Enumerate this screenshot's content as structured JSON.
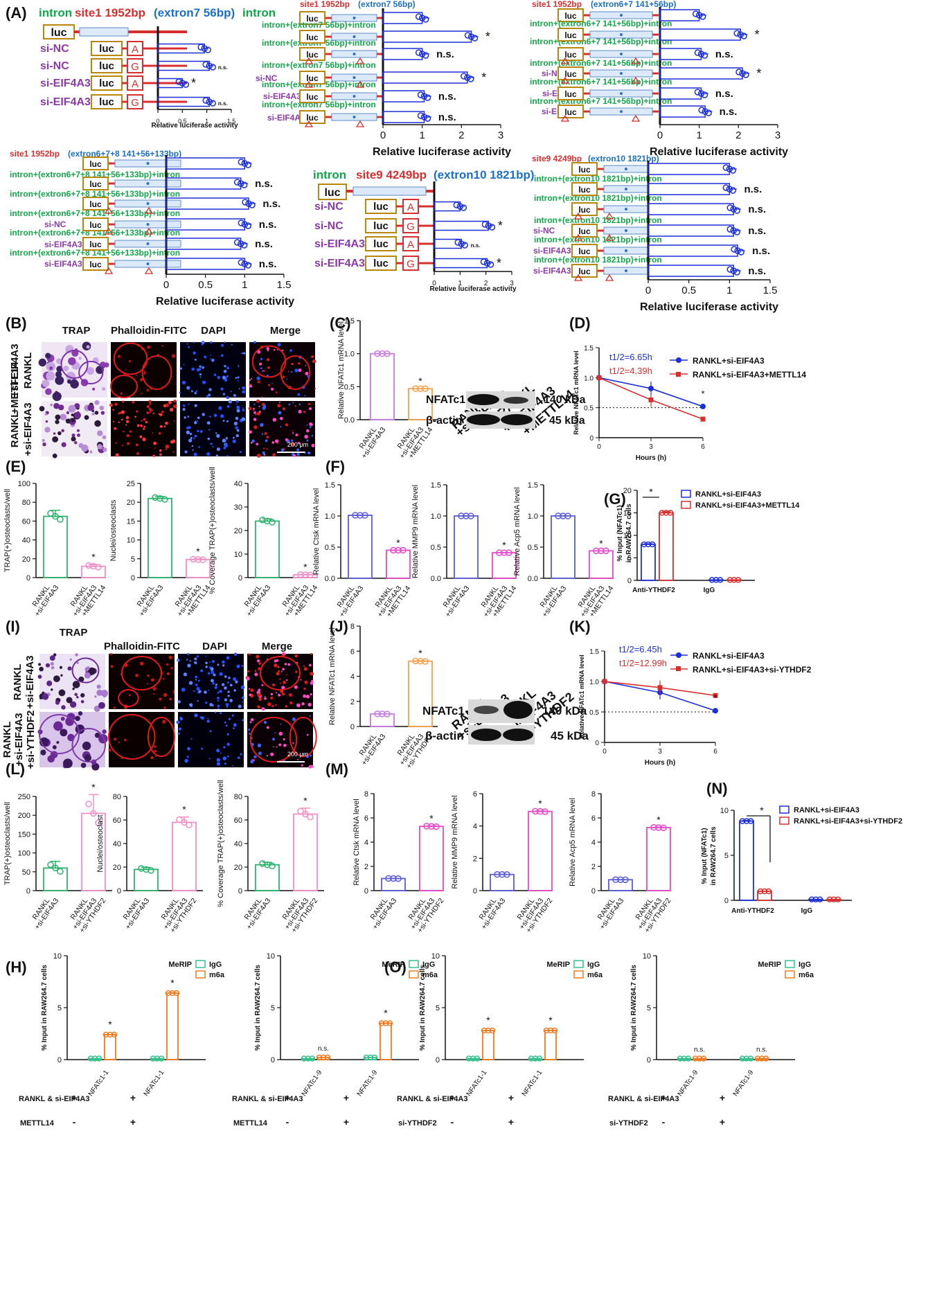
{
  "colors": {
    "red": "#d72f2f",
    "green": "#12a64a",
    "blue": "#1b6fc8",
    "purple": "#8b3aa8",
    "gold": "#b8860b",
    "navy": "#1c2fd8",
    "blk": "#111111",
    "ctrl_green": "#2db36e",
    "treat_pink": "#f08fc7",
    "ctrl_blue": "#5a5ad8",
    "treat_mag": "#e548c8",
    "orange": "#f4a04a",
    "lilac": "#c77be0",
    "igg_green": "#34c08a",
    "m6a_orange": "#f07a1e"
  },
  "panels": {
    "A": "(A)",
    "B": "(B)",
    "C": "(C)",
    "D": "(D)",
    "E": "(E)",
    "F": "(F)",
    "G": "(G)",
    "H": "(H)",
    "I": "(I)",
    "J": "(J)",
    "K": "(K)",
    "L": "(L)",
    "M": "(M)",
    "N": "(N)",
    "O": "(O)"
  },
  "luc": {
    "luc": "luc",
    "A": "A",
    "G": "G",
    "si_nc": "si-NC",
    "si_eif": "si-EIF4A3",
    "rla": "Relative luciferase activity",
    "ns": "n.s.",
    "star": "*",
    "p1": {
      "t1": "intron",
      "t2": "site1 1952bp",
      "t3": "(extron7 56bp)",
      "t4": "intron"
    },
    "p2": {
      "h1": "site1 1952bp",
      "h2": "(extron7 56bp)",
      "row": "intron+(extron7 56bp)+intron"
    },
    "p3": {
      "h1": "site1 1952bp",
      "h2": "(extron6+7 141+56bp)",
      "row": "intron+(extron6+7 141+56bp)+intron"
    },
    "p4": {
      "h1": "site1 1952bp",
      "h2": "(extron6+7+8 141+56+133bp)",
      "row": "intron+(extron6+7+8 141+56+133bp)+intron"
    },
    "p5": {
      "t1": "intron",
      "t2": "site9 4249bp",
      "t3": "(extron10 1821bp)"
    },
    "p6": {
      "h1": "site9 4249bp",
      "h2": "(extron10 1821bp)",
      "row": "intron+(extron10 1821bp)+intron"
    }
  },
  "micro": {
    "trap": "TRAP",
    "phal": "Phalloidin-FITC",
    "dapi": "DAPI",
    "merge": "Merge",
    "scale": "200 μm",
    "rankl": "RANKL",
    "si_eif": "+si-EIF4A3",
    "rankl_si": "RANKL +si-EIF4A3",
    "mettl": "+METTL14",
    "ythdf": "+si-YTHDF2"
  },
  "wb": {
    "nfat": "NFATc1",
    "actin": "β-actin",
    "kda140": "140 kDa",
    "kda45": "45 kDa",
    "c_l1": "RANKL",
    "c_l2": "+si-EIF4A3",
    "c_l3": "+METTL14",
    "c_l4": "+si-YTHDF2"
  },
  "axis": {
    "rankl": "RANKL",
    "si_eif": "+si-EIF4A3",
    "mettl": "+METTL14",
    "ythdf": "+si-YTHDF2",
    "nfat_mrna": "Relative NFATc1 mRNA level",
    "hours": "Hours (h)",
    "trap_e": "TRAP(+)osteoclasts/well",
    "nuclei_e": "Nuclei/osteoclasts",
    "cov_e": "% Coverage TRAP(+)osteoclasts/well",
    "trap_l": "TRAP(+)osteoclasts/well",
    "nuclei_l": "Nuclei/osteoclast",
    "cov_l": "% Coverage TRAP(+)osteoclasts/well",
    "ctsk": "Relative Ctsk mRNA level",
    "mmp9": "Relative MMP9 mRNA level",
    "acp5": "Relative Acp5 mRNA level",
    "input_nfat": "% Input (NFATc1)",
    "raw": "in RAW264.7 cells",
    "input_raw": "% Input in RAW264.7 cells",
    "anti": "Anti-YTHDF2",
    "igg": "IgG",
    "merip": "MeRIP",
    "m6a": "m6a",
    "nf1": "NFATc1-1",
    "nf9": "NFATc1-9",
    "rankl_si": "RANKL & si-EIF4A3",
    "mettl14": "METTL14",
    "siythdf2": "si-YTHDF2",
    "plus": "+",
    "minus": "-"
  },
  "legend": {
    "d1": "RANKL+si-EIF4A3",
    "d2": "RANKL+si-EIF4A3+METTL14",
    "k1": "RANKL+si-EIF4A3",
    "k2": "RANKL+si-EIF4A3+si-YTHDF2",
    "d_t1": "t1/2=6.65h",
    "d_t2": "t1/2=4.39h",
    "k_t1": "t1/2=6.45h",
    "k_t2": "t1/2=12.99h"
  },
  "chart_data": [
    {
      "id": "A1",
      "type": "bar",
      "orientation": "horizontal",
      "categories": [
        "luc",
        "si-NC A",
        "si-NC G",
        "si-EIF4A3 A",
        "si-EIF4A3 G"
      ],
      "values": [
        null,
        0.95,
        1.05,
        0.5,
        1.05
      ],
      "xlim": [
        0,
        1.5
      ],
      "xticks": [
        0,
        0.5,
        1.0,
        1.5
      ],
      "xlabel": "Relative luciferase activity",
      "significance": [
        "",
        "",
        "n.s.",
        "*",
        "n.s."
      ]
    },
    {
      "id": "A2",
      "type": "bar",
      "orientation": "horizontal",
      "values": [
        1.0,
        2.25,
        1.0,
        2.15,
        1.05,
        1.05
      ],
      "xlim": [
        0,
        3
      ],
      "xticks": [
        0,
        1,
        2,
        3
      ],
      "xlabel": "Relative luciferase activity",
      "significance": [
        "",
        "*",
        "n.s.",
        "*",
        "n.s.",
        "n.s."
      ]
    },
    {
      "id": "A3",
      "type": "bar",
      "orientation": "horizontal",
      "values": [
        1.0,
        2.05,
        1.05,
        2.1,
        1.05,
        1.15
      ],
      "xlim": [
        0,
        3
      ],
      "xticks": [
        0,
        1,
        2,
        3
      ],
      "xlabel": "Relative luciferase activity",
      "significance": [
        "",
        "*",
        "n.s.",
        "*",
        "n.s.",
        "n.s."
      ]
    },
    {
      "id": "A4",
      "type": "bar",
      "orientation": "horizontal",
      "values": [
        1.0,
        0.95,
        1.05,
        1.0,
        0.95,
        1.0
      ],
      "xlim": [
        0,
        1.5
      ],
      "xticks": [
        0,
        0.5,
        1.0,
        1.5
      ],
      "xlabel": "Relative luciferase activity",
      "significance": [
        "",
        "n.s.",
        "n.s.",
        "n.s.",
        "n.s.",
        "n.s."
      ]
    },
    {
      "id": "A5",
      "type": "bar",
      "orientation": "horizontal",
      "values": [
        null,
        1.0,
        2.1,
        1.05,
        2.05
      ],
      "xlim": [
        0,
        3
      ],
      "xticks": [
        0,
        1,
        2,
        3
      ],
      "xlabel": "Relative luciferase activity",
      "significance": [
        "",
        "",
        "*",
        "n.s.",
        "*"
      ]
    },
    {
      "id": "A6",
      "type": "bar",
      "orientation": "horizontal",
      "values": [
        1.0,
        1.0,
        1.05,
        1.05,
        1.1,
        1.05
      ],
      "xlim": [
        0,
        1.5
      ],
      "xticks": [
        0,
        0.5,
        1.0,
        1.5
      ],
      "xlabel": "Relative luciferase activity",
      "significance": [
        "",
        "n.s.",
        "n.s.",
        "n.s.",
        "n.s.",
        "n.s."
      ]
    },
    {
      "id": "C",
      "type": "bar",
      "ylabel": "Relative NFATc1 mRNA level",
      "values": [
        1.0,
        0.47
      ],
      "ylim": [
        0,
        1.5
      ],
      "yticks": [
        0,
        0.5,
        1.0,
        1.5
      ]
    },
    {
      "id": "D",
      "type": "line",
      "x": [
        0,
        3,
        6
      ],
      "series": [
        {
          "name": "RANKL+si-EIF4A3",
          "values": [
            1.0,
            0.82,
            0.52
          ]
        },
        {
          "name": "RANKL+si-EIF4A3+METTL14",
          "values": [
            1.0,
            0.63,
            0.31
          ]
        }
      ],
      "ylim": [
        0,
        1.5
      ],
      "yticks": [
        0,
        0.5,
        1.0,
        1.5
      ],
      "xlabel": "Hours (h)",
      "ylabel": "Relative NFATc1 mRNA level"
    },
    {
      "id": "E1",
      "type": "bar",
      "values": [
        65,
        12
      ],
      "ylim": [
        0,
        100
      ],
      "yticks": [
        0,
        20,
        40,
        60,
        80,
        100
      ],
      "ylabel": "TRAP(+)osteoclasts/well"
    },
    {
      "id": "E2",
      "type": "bar",
      "values": [
        21,
        4.8
      ],
      "ylim": [
        0,
        25
      ],
      "yticks": [
        0,
        5,
        10,
        15,
        20,
        25
      ],
      "ylabel": "Nuclei/osteoclasts"
    },
    {
      "id": "E3",
      "type": "bar",
      "values": [
        24,
        1.2
      ],
      "ylim": [
        0,
        40
      ],
      "yticks": [
        0,
        10,
        20,
        30,
        40
      ],
      "ylabel": "% Coverage TRAP(+)osteoclasts/well"
    },
    {
      "id": "F1",
      "type": "bar",
      "values": [
        1.01,
        0.45
      ],
      "ylim": [
        0,
        1.5
      ],
      "yticks": [
        0,
        0.5,
        1.0,
        1.5
      ],
      "ylabel": "Relative Ctsk mRNA level"
    },
    {
      "id": "F2",
      "type": "bar",
      "values": [
        1.0,
        0.41
      ],
      "ylim": [
        0,
        1.5
      ],
      "yticks": [
        0,
        0.5,
        1.0,
        1.5
      ],
      "ylabel": "Relative MMP9 mRNA level"
    },
    {
      "id": "F3",
      "type": "bar",
      "values": [
        1.0,
        0.44
      ],
      "ylim": [
        0,
        1.5
      ],
      "yticks": [
        0,
        0.5,
        1.0,
        1.5
      ],
      "ylabel": "Relative Acp5 mRNA level"
    },
    {
      "id": "G",
      "type": "bar",
      "categories": [
        "Anti-YTHDF2",
        "IgG"
      ],
      "series": [
        {
          "name": "RANKL+si-EIF4A3",
          "values": [
            8.0,
            0.1
          ]
        },
        {
          "name": "RANKL+si-EIF4A3+METTL14",
          "values": [
            15.0,
            0.1
          ]
        }
      ],
      "ylim": [
        0,
        20
      ],
      "yticks": [
        0,
        5,
        10,
        15,
        20
      ]
    },
    {
      "id": "J",
      "type": "bar",
      "values": [
        1.0,
        5.2
      ],
      "ylim": [
        0,
        8
      ],
      "yticks": [
        0,
        2,
        4,
        6,
        8
      ],
      "ylabel": "Relative NFATc1 mRNA level"
    },
    {
      "id": "K",
      "type": "line",
      "x": [
        0,
        3,
        6
      ],
      "series": [
        {
          "name": "RANKL+si-EIF4A3",
          "values": [
            1.0,
            0.82,
            0.52
          ]
        },
        {
          "name": "RANKL+si-EIF4A3+si-YTHDF2",
          "values": [
            1.0,
            0.9,
            0.77
          ]
        }
      ],
      "ylim": [
        0,
        1.5
      ],
      "yticks": [
        0,
        0.5,
        1.0,
        1.5
      ],
      "xlabel": "Hours (h)",
      "ylabel": "Relative NFATc1 mRNA level"
    },
    {
      "id": "L1",
      "type": "bar",
      "values": [
        60,
        205
      ],
      "ylim": [
        0,
        250
      ],
      "yticks": [
        0,
        50,
        100,
        150,
        200,
        250
      ],
      "ylabel": "TRAP(+)osteoclasts/well"
    },
    {
      "id": "L2",
      "type": "bar",
      "values": [
        18,
        58
      ],
      "ylim": [
        0,
        80
      ],
      "yticks": [
        0,
        20,
        40,
        60,
        80
      ],
      "ylabel": "Nuclei/osteoclast"
    },
    {
      "id": "L3",
      "type": "bar",
      "values": [
        22,
        65
      ],
      "ylim": [
        0,
        80
      ],
      "yticks": [
        0,
        20,
        40,
        60,
        80
      ],
      "ylabel": "% Coverage TRAP(+)osteoclasts/well"
    },
    {
      "id": "M1",
      "type": "bar",
      "values": [
        1.0,
        5.3
      ],
      "ylim": [
        0,
        8
      ],
      "yticks": [
        0,
        2,
        4,
        6,
        8
      ],
      "ylabel": "Relative Ctsk mRNA level"
    },
    {
      "id": "M2",
      "type": "bar",
      "values": [
        1.0,
        4.9
      ],
      "ylim": [
        0,
        6
      ],
      "yticks": [
        0,
        2,
        4,
        6
      ],
      "ylabel": "Relative MMP9 mRNA level"
    },
    {
      "id": "M3",
      "type": "bar",
      "values": [
        0.9,
        5.2
      ],
      "ylim": [
        0,
        8
      ],
      "yticks": [
        0,
        2,
        4,
        6,
        8
      ],
      "ylabel": "Relative Acp5 mRNA level"
    },
    {
      "id": "N",
      "type": "bar",
      "categories": [
        "Anti-YTHDF2",
        "IgG"
      ],
      "series": [
        {
          "name": "RANKL+si-EIF4A3",
          "values": [
            8.8,
            0.1
          ]
        },
        {
          "name": "RANKL+si-EIF4A3+si-YTHDF2",
          "values": [
            1.0,
            0.1
          ]
        }
      ],
      "ylim": [
        0,
        10
      ],
      "yticks": [
        0,
        5,
        10
      ]
    },
    {
      "id": "H1",
      "type": "bar",
      "categories": [
        "NFATc1-1",
        "NFATc1-1"
      ],
      "series": [
        {
          "name": "IgG",
          "values": [
            0.1,
            0.1
          ]
        },
        {
          "name": "m6a",
          "values": [
            2.4,
            6.4
          ]
        }
      ],
      "ylim": [
        0,
        10
      ],
      "yticks": [
        0,
        5,
        10
      ]
    },
    {
      "id": "H2",
      "type": "bar",
      "categories": [
        "NFATc1-9",
        "NFATc1-9"
      ],
      "series": [
        {
          "name": "IgG",
          "values": [
            0.1,
            0.2
          ]
        },
        {
          "name": "m6a",
          "values": [
            0.2,
            3.5
          ]
        }
      ],
      "ylim": [
        0,
        10
      ],
      "yticks": [
        0,
        5,
        10
      ]
    },
    {
      "id": "O1",
      "type": "bar",
      "categories": [
        "NFATc1-1",
        "NFATc1-1"
      ],
      "series": [
        {
          "name": "IgG",
          "values": [
            0.1,
            0.1
          ]
        },
        {
          "name": "m6a",
          "values": [
            2.8,
            2.8
          ]
        }
      ],
      "ylim": [
        0,
        10
      ],
      "yticks": [
        0,
        5,
        10
      ]
    },
    {
      "id": "O2",
      "type": "bar",
      "categories": [
        "NFATc1-9",
        "NFATc1-9"
      ],
      "series": [
        {
          "name": "IgG",
          "values": [
            0.1,
            0.1
          ]
        },
        {
          "name": "m6a",
          "values": [
            0.1,
            0.1
          ]
        }
      ],
      "ylim": [
        0,
        10
      ],
      "yticks": [
        0,
        5,
        10
      ]
    }
  ]
}
